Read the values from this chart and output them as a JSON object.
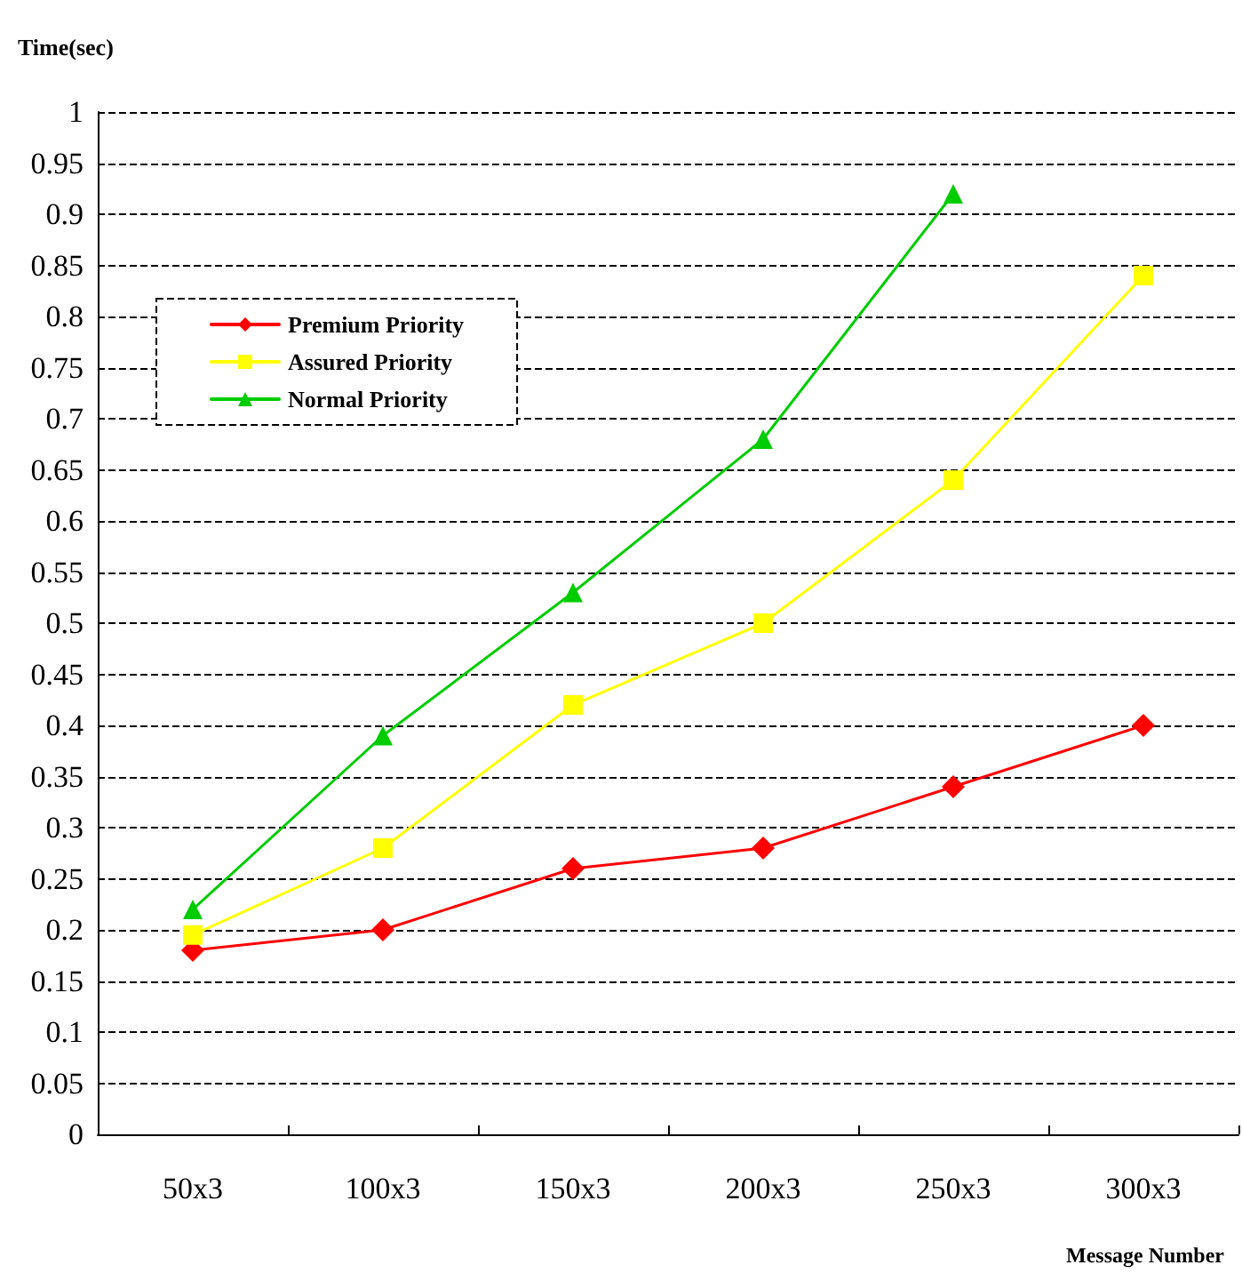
{
  "chart_data": {
    "type": "line",
    "ylabel": "Time(sec)",
    "xlabel": "Message Number",
    "categories": [
      "50x3",
      "100x3",
      "150x3",
      "200x3",
      "250x3",
      "300x3"
    ],
    "series": [
      {
        "name": "Premium Priority",
        "color": "#ff0000",
        "marker": "diamond",
        "values": [
          0.18,
          0.2,
          0.26,
          0.28,
          0.34,
          0.4
        ]
      },
      {
        "name": "Assured Priority",
        "color": "#ffff00",
        "marker": "square",
        "values": [
          0.195,
          0.28,
          0.42,
          0.5,
          0.64,
          0.84
        ]
      },
      {
        "name": "Normal Priority",
        "color": "#00cc00",
        "marker": "triangle",
        "values": [
          0.22,
          0.39,
          0.53,
          0.68,
          0.92,
          null
        ]
      }
    ],
    "ylim": [
      0,
      1
    ],
    "yticks": [
      0,
      0.05,
      0.1,
      0.15,
      0.2,
      0.25,
      0.3,
      0.35,
      0.4,
      0.45,
      0.5,
      0.55,
      0.6,
      0.65,
      0.7,
      0.75,
      0.8,
      0.85,
      0.9,
      0.95,
      1
    ],
    "grid": "y",
    "legend": "top left",
    "line_style": "solid"
  }
}
